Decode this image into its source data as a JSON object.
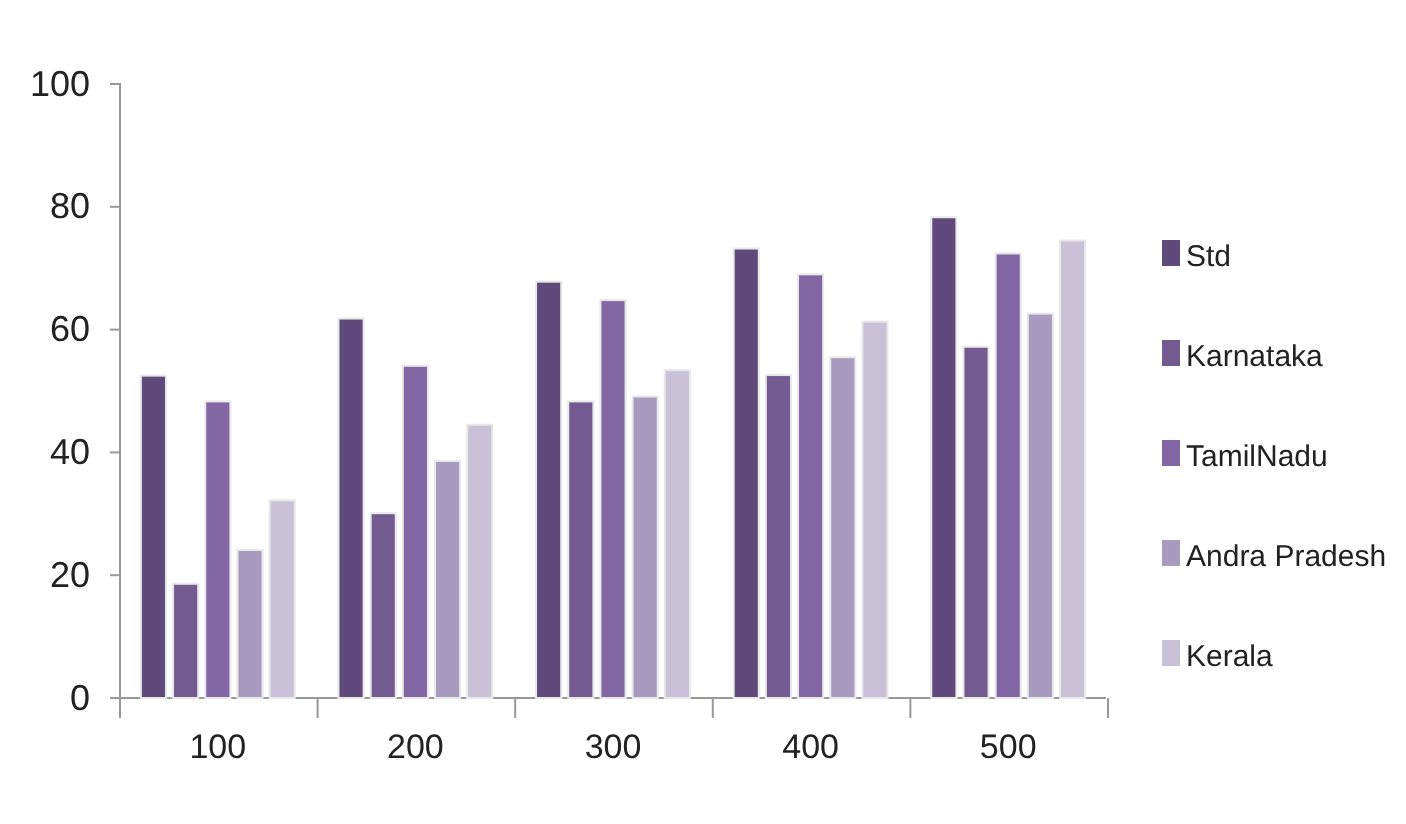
{
  "chart_data": {
    "type": "bar",
    "categories": [
      "100",
      "200",
      "300",
      "400",
      "500"
    ],
    "series": [
      {
        "name": "Std",
        "color": "#5f4a7b",
        "values": [
          52.5,
          61.8,
          67.8,
          73.2,
          78.3
        ]
      },
      {
        "name": "Karnataka",
        "color": "#735b91",
        "values": [
          18.6,
          30.1,
          48.3,
          52.6,
          57.2
        ]
      },
      {
        "name": "TamilNadu",
        "color": "#8266a4",
        "values": [
          48.3,
          54.1,
          64.8,
          69.0,
          72.4
        ]
      },
      {
        "name": "Andra Pradesh",
        "color": "#a99bc0",
        "values": [
          24.1,
          38.6,
          49.1,
          55.5,
          62.6
        ]
      },
      {
        "name": "Kerala",
        "color": "#c8c1d8",
        "values": [
          32.2,
          44.5,
          53.4,
          61.3,
          74.5
        ]
      }
    ],
    "ylim": [
      0,
      100
    ],
    "yticks": [
      0,
      20,
      40,
      60,
      80,
      100
    ],
    "legend": "right"
  }
}
